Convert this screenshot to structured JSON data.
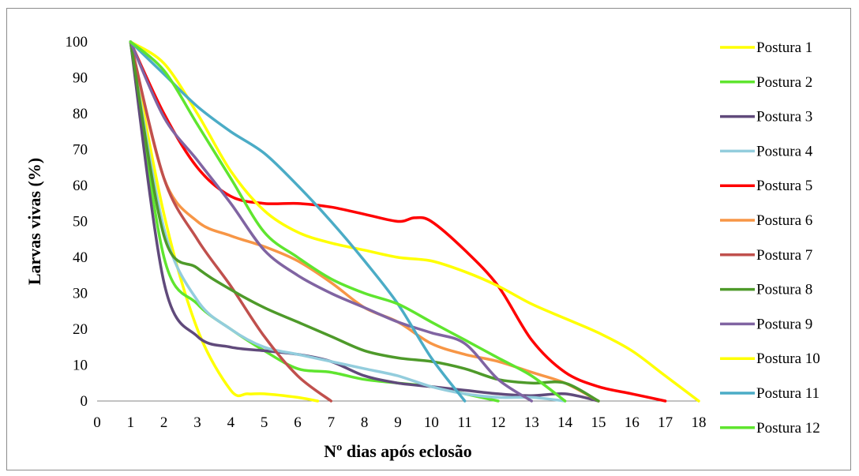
{
  "chart_data": {
    "type": "line",
    "title": "",
    "xlabel": "Nº dias após eclosão",
    "ylabel": "Larvas vivas (%)",
    "xlim": [
      0,
      18
    ],
    "ylim": [
      0,
      100
    ],
    "x_ticks": [
      0,
      1,
      2,
      3,
      4,
      5,
      6,
      7,
      8,
      9,
      10,
      11,
      12,
      13,
      14,
      15,
      16,
      17,
      18
    ],
    "y_ticks": [
      0,
      10,
      20,
      30,
      40,
      50,
      60,
      70,
      80,
      90,
      100
    ],
    "grid": false,
    "legend_position": "right",
    "series": [
      {
        "name": "Postura 1",
        "color": "#ffff00",
        "points": [
          [
            1,
            100
          ],
          [
            2,
            52
          ],
          [
            3,
            20
          ],
          [
            4,
            3
          ],
          [
            4.5,
            2
          ],
          [
            5,
            2
          ],
          [
            6,
            1
          ],
          [
            6.6,
            0
          ]
        ]
      },
      {
        "name": "Postura 2",
        "color": "#5fe52f",
        "points": [
          [
            1,
            100
          ],
          [
            2,
            40
          ],
          [
            3,
            27
          ],
          [
            4,
            20
          ],
          [
            5,
            14
          ],
          [
            6,
            9
          ],
          [
            7,
            8
          ],
          [
            8,
            6
          ],
          [
            9,
            5
          ],
          [
            10,
            4
          ],
          [
            11,
            2
          ],
          [
            12,
            0
          ]
        ]
      },
      {
        "name": "Postura 3",
        "color": "#604a7b",
        "points": [
          [
            1,
            100
          ],
          [
            2,
            33
          ],
          [
            3,
            18
          ],
          [
            4,
            15
          ],
          [
            5,
            14
          ],
          [
            6,
            13
          ],
          [
            7,
            11
          ],
          [
            8,
            7
          ],
          [
            9,
            5
          ],
          [
            10,
            4
          ],
          [
            11,
            3
          ],
          [
            12,
            2
          ],
          [
            13,
            1.5
          ],
          [
            14,
            2
          ],
          [
            15,
            0
          ]
        ]
      },
      {
        "name": "Postura 4",
        "color": "#93cddd",
        "points": [
          [
            1,
            100
          ],
          [
            2,
            48
          ],
          [
            3,
            28
          ],
          [
            4,
            20
          ],
          [
            5,
            15
          ],
          [
            6,
            13
          ],
          [
            7,
            11
          ],
          [
            8,
            9
          ],
          [
            9,
            7
          ],
          [
            10,
            4
          ],
          [
            11,
            2
          ],
          [
            12,
            1
          ],
          [
            13,
            1
          ],
          [
            14,
            0
          ]
        ]
      },
      {
        "name": "Postura 5",
        "color": "#ff0000",
        "points": [
          [
            1,
            100
          ],
          [
            2,
            80
          ],
          [
            3,
            65
          ],
          [
            4,
            57
          ],
          [
            5,
            55
          ],
          [
            6,
            55
          ],
          [
            7,
            54
          ],
          [
            8,
            52
          ],
          [
            9,
            50
          ],
          [
            9.5,
            51
          ],
          [
            10,
            50
          ],
          [
            11,
            42
          ],
          [
            12,
            32
          ],
          [
            13,
            17
          ],
          [
            14,
            8
          ],
          [
            15,
            4
          ],
          [
            16,
            2
          ],
          [
            17,
            0
          ]
        ]
      },
      {
        "name": "Postura 6",
        "color": "#f79646",
        "points": [
          [
            1,
            100
          ],
          [
            2,
            62
          ],
          [
            3,
            50
          ],
          [
            4,
            46
          ],
          [
            5,
            43
          ],
          [
            6,
            39
          ],
          [
            7,
            33
          ],
          [
            8,
            26
          ],
          [
            9,
            22
          ],
          [
            10,
            16
          ],
          [
            11,
            13
          ],
          [
            12,
            11
          ],
          [
            13,
            8
          ],
          [
            14,
            5
          ],
          [
            15,
            0
          ]
        ]
      },
      {
        "name": "Postura 7",
        "color": "#c0504d",
        "points": [
          [
            1,
            100
          ],
          [
            2,
            62
          ],
          [
            3,
            45
          ],
          [
            4,
            32
          ],
          [
            5,
            18
          ],
          [
            6,
            7
          ],
          [
            7,
            0
          ]
        ]
      },
      {
        "name": "Postura 8",
        "color": "#4e9a2a",
        "points": [
          [
            1,
            100
          ],
          [
            2,
            46
          ],
          [
            3,
            37
          ],
          [
            4,
            31
          ],
          [
            5,
            26
          ],
          [
            6,
            22
          ],
          [
            7,
            18
          ],
          [
            8,
            14
          ],
          [
            9,
            12
          ],
          [
            10,
            11
          ],
          [
            11,
            9
          ],
          [
            12,
            6
          ],
          [
            13,
            5
          ],
          [
            14,
            5
          ],
          [
            15,
            0
          ]
        ]
      },
      {
        "name": "Postura 9",
        "color": "#8064a2",
        "points": [
          [
            1,
            100
          ],
          [
            2,
            79
          ],
          [
            3,
            67
          ],
          [
            4,
            55
          ],
          [
            5,
            42
          ],
          [
            6,
            35
          ],
          [
            7,
            30
          ],
          [
            8,
            26
          ],
          [
            9,
            22
          ],
          [
            10,
            19
          ],
          [
            11,
            16
          ],
          [
            12,
            6
          ],
          [
            13,
            0
          ]
        ]
      },
      {
        "name": "Postura 10",
        "color": "#ffff00",
        "points": [
          [
            1,
            100
          ],
          [
            2,
            94
          ],
          [
            3,
            80
          ],
          [
            4,
            64
          ],
          [
            5,
            53
          ],
          [
            6,
            47
          ],
          [
            7,
            44
          ],
          [
            8,
            42
          ],
          [
            9,
            40
          ],
          [
            10,
            39
          ],
          [
            11,
            36
          ],
          [
            12,
            32
          ],
          [
            13,
            27
          ],
          [
            14,
            23
          ],
          [
            15,
            19
          ],
          [
            16,
            14
          ],
          [
            17,
            7
          ],
          [
            18,
            0
          ]
        ]
      },
      {
        "name": "Postura 11",
        "color": "#4bacc6",
        "points": [
          [
            1,
            100
          ],
          [
            2,
            91
          ],
          [
            3,
            82
          ],
          [
            4,
            75
          ],
          [
            5,
            69
          ],
          [
            6,
            60
          ],
          [
            7,
            50
          ],
          [
            8,
            39
          ],
          [
            9,
            27
          ],
          [
            10,
            12
          ],
          [
            11,
            0
          ]
        ]
      },
      {
        "name": "Postura 12",
        "color": "#5fe52f",
        "points": [
          [
            1,
            100
          ],
          [
            2,
            92
          ],
          [
            3,
            77
          ],
          [
            4,
            62
          ],
          [
            5,
            47
          ],
          [
            6,
            40
          ],
          [
            7,
            34
          ],
          [
            8,
            30
          ],
          [
            9,
            27
          ],
          [
            10,
            22
          ],
          [
            11,
            17
          ],
          [
            12,
            12
          ],
          [
            13,
            7
          ],
          [
            14,
            0
          ]
        ]
      }
    ]
  }
}
